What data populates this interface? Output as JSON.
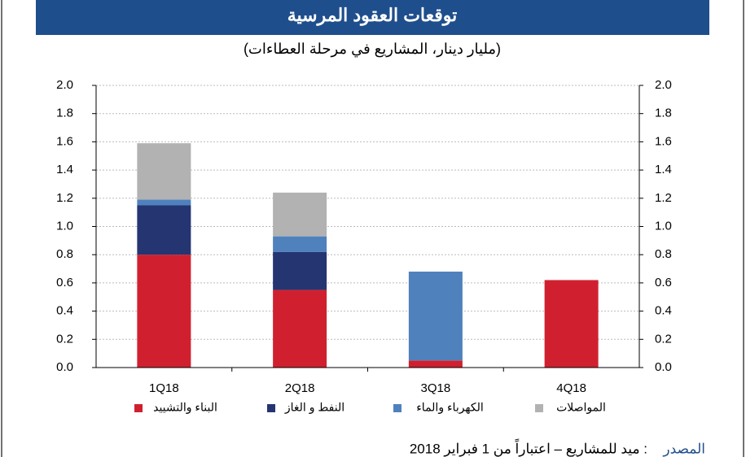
{
  "chart_data": {
    "type": "stacked_bar",
    "title": "توقعات العقود المرسية",
    "subtitle": "(مليار دينار، المشاريع في مرحلة العطاءات)",
    "categories": [
      "1Q18",
      "2Q18",
      "3Q18",
      "4Q18"
    ],
    "series": [
      {
        "name": "البناء والتشييد",
        "color": "#d0202f",
        "values": [
          0.8,
          0.55,
          0.05,
          0.62
        ]
      },
      {
        "name": "النفط و الغاز",
        "color": "#253572",
        "values": [
          0.35,
          0.27,
          0,
          0
        ]
      },
      {
        "name": "الكهرباء والماء",
        "color": "#4f81bd",
        "values": [
          0.04,
          0.11,
          0.63,
          0
        ]
      },
      {
        "name": "المواصلات",
        "color": "#b2b2b2",
        "values": [
          0.4,
          0.31,
          0,
          0
        ]
      }
    ],
    "ylim": [
      0,
      2.0
    ],
    "yticks": [
      {
        "value": 0,
        "label": "0.0"
      },
      {
        "value": 0.2,
        "label": "0.2"
      },
      {
        "value": 0.4,
        "label": "0.4"
      },
      {
        "value": 0.6,
        "label": "0.6"
      },
      {
        "value": 0.8,
        "label": "0.8"
      },
      {
        "value": 1.0,
        "label": "1.0"
      },
      {
        "value": 1.2,
        "label": "1.2"
      },
      {
        "value": 1.4,
        "label": "1.4"
      },
      {
        "value": 1.6,
        "label": "1.6"
      },
      {
        "value": 1.8,
        "label": "1.8"
      },
      {
        "value": 2.0,
        "label": "2.0"
      }
    ],
    "y2lim": [
      0,
      2.0
    ],
    "y2ticks": [
      {
        "value": 0,
        "label": "0.0"
      },
      {
        "value": 0.2,
        "label": "0.2"
      },
      {
        "value": 0.4,
        "label": "0.4"
      },
      {
        "value": 0.6,
        "label": "0.6"
      },
      {
        "value": 0.8,
        "label": "0.8"
      },
      {
        "value": 1.0,
        "label": "1.0"
      },
      {
        "value": 1.2,
        "label": "1.2"
      },
      {
        "value": 1.4,
        "label": "1.4"
      },
      {
        "value": 1.6,
        "label": "1.6"
      },
      {
        "value": 1.8,
        "label": "1.8"
      },
      {
        "value": 2.0,
        "label": "2.0"
      }
    ],
    "grid": true,
    "source_label": "المصدر",
    "source_text": ": ميد للمشاريع – اعتباراً من 1 فبراير 2018"
  }
}
